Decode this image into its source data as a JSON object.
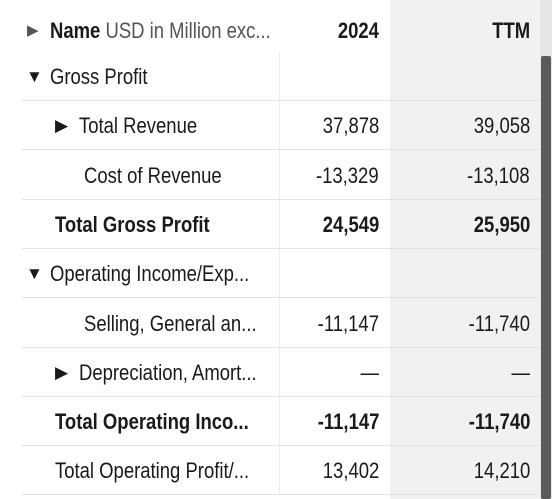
{
  "table": {
    "header": {
      "name": "Name",
      "note": "USD in Million exc...",
      "columns": [
        "2024",
        "TTM"
      ]
    },
    "rows": [
      {
        "label": "Gross Profit",
        "level": 0,
        "bold": false,
        "toggle": "open",
        "values": []
      },
      {
        "label": "Total Revenue",
        "level": 1,
        "bold": false,
        "toggle": "closed",
        "values": [
          "37,878",
          "39,058"
        ]
      },
      {
        "label": "Cost of Revenue",
        "level": 1,
        "bold": false,
        "toggle": null,
        "values": [
          "-13,329",
          "-13,108"
        ]
      },
      {
        "label": "Total Gross Profit",
        "level": 0,
        "bold": true,
        "toggle": null,
        "values": [
          "24,549",
          "25,950"
        ]
      },
      {
        "label": "Operating Income/Exp...",
        "level": 0,
        "bold": false,
        "toggle": "open",
        "values": []
      },
      {
        "label": "Selling, General an...",
        "level": 1,
        "bold": false,
        "toggle": null,
        "values": [
          "-11,147",
          "-11,740"
        ]
      },
      {
        "label": "Depreciation, Amort...",
        "level": 1,
        "bold": false,
        "toggle": "closed",
        "values": [
          "—",
          "—"
        ]
      },
      {
        "label": "Total Operating Inco...",
        "level": 0,
        "bold": true,
        "toggle": null,
        "values": [
          "-11,147",
          "-11,740"
        ]
      },
      {
        "label": "Total Operating Profit/...",
        "level": 0,
        "bold": false,
        "toggle": null,
        "values": [
          "13,402",
          "14,210"
        ]
      }
    ]
  }
}
